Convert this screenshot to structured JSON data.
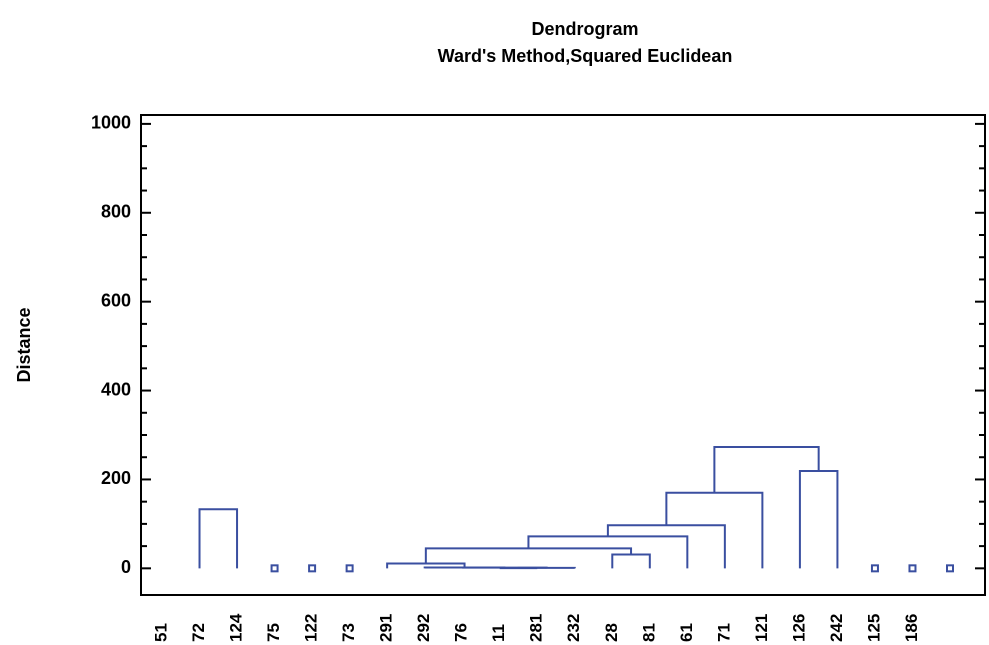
{
  "chart_data": {
    "type": "dendrogram",
    "title": "Dendrogram",
    "subtitle": "Ward's Method,Squared Euclidean",
    "y_label": "Distance",
    "categories": [
      "51",
      "72",
      "124",
      "75",
      "122",
      "73",
      "291",
      "292",
      "76",
      "11",
      "281",
      "232",
      "28",
      "81",
      "61",
      "71",
      "121",
      "126",
      "242",
      "125",
      "186",
      null
    ],
    "merges": [
      [
        1,
        2,
        133
      ],
      [
        9,
        10,
        0.5
      ],
      [
        23,
        11,
        1
      ],
      [
        8,
        24,
        1.5
      ],
      [
        7,
        25,
        2
      ],
      [
        6,
        26,
        11
      ],
      [
        12,
        13,
        31
      ],
      [
        27,
        28,
        45
      ],
      [
        29,
        14,
        72
      ],
      [
        30,
        15,
        97
      ],
      [
        31,
        16,
        170
      ],
      [
        17,
        18,
        219
      ],
      [
        32,
        33,
        273
      ]
    ],
    "singletons": [
      3,
      4,
      5,
      19,
      20,
      21
    ],
    "color": "#3a4fa0",
    "ylim": [
      -60,
      1020
    ],
    "yticks": [
      0,
      200,
      400,
      600,
      800,
      1000
    ],
    "minor_yticks": [
      50,
      100,
      150,
      250,
      300,
      350,
      450,
      500,
      550,
      650,
      700,
      750,
      850,
      900,
      950
    ]
  }
}
